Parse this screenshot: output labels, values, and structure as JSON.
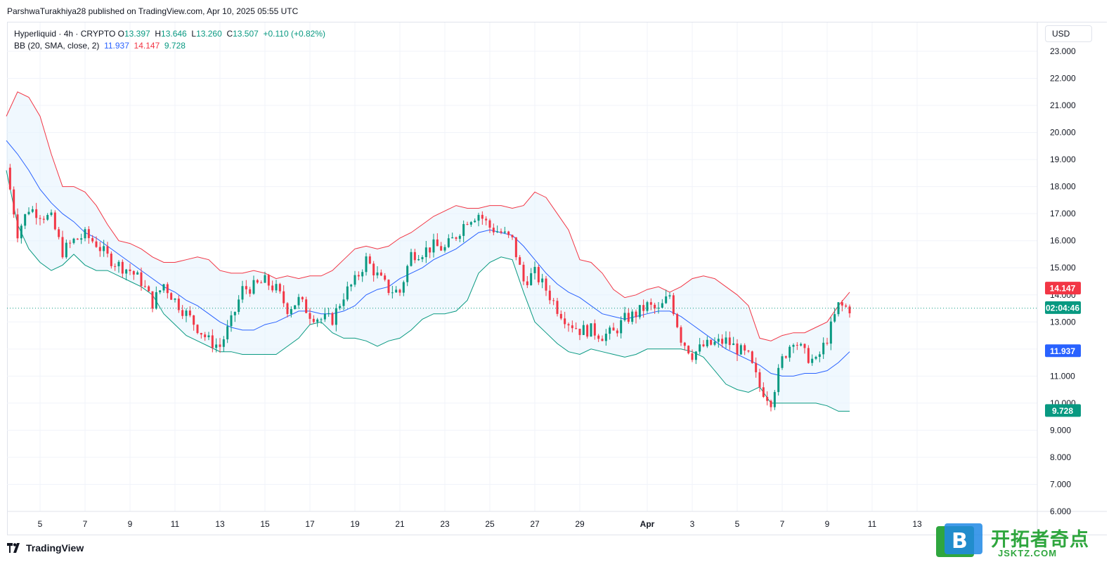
{
  "header": {
    "publisher_line": "ParshwaTurakhiya28 published on TradingView.com, Apr 10, 2025 05:55 UTC"
  },
  "legend": {
    "symbol": "Hyperliquid · 4h · CRYPTO",
    "o_label": "O",
    "o": "13.397",
    "h_label": "H",
    "h": "13.646",
    "l_label": "L",
    "l": "13.260",
    "c_label": "C",
    "c": "13.507",
    "change": "+0.110 (+0.82%)",
    "bb_label": "BB (20, SMA, close, 2)",
    "bb_basis": "11.937",
    "bb_upper": "14.147",
    "bb_lower": "9.728"
  },
  "currency_button": "USD",
  "price_badges": {
    "upper": "14.147",
    "countdown": "02:04:46",
    "basis": "11.937",
    "lower": "9.728"
  },
  "footer": {
    "brand": "TradingView"
  },
  "watermark": {
    "text": "开拓者奇点",
    "url": "JSKTZ.COM"
  },
  "colors": {
    "up": "#089981",
    "down": "#f23645",
    "basis": "#2962ff",
    "upper": "#f23645",
    "lower": "#089981",
    "fill": "#e3f2fd"
  },
  "chart_data": {
    "type": "line",
    "title": "Hyperliquid · 4h · CRYPTO",
    "y_ticks": [
      "23.000",
      "22.000",
      "21.000",
      "20.000",
      "19.000",
      "18.000",
      "17.000",
      "16.000",
      "15.000",
      "14.000",
      "13.000",
      "12.000",
      "11.000",
      "10.000",
      "9.000",
      "8.000",
      "7.000",
      "6.000"
    ],
    "ylim": [
      6.0,
      23.4
    ],
    "x_ticks": [
      "5",
      "7",
      "9",
      "11",
      "13",
      "15",
      "17",
      "19",
      "21",
      "23",
      "25",
      "27",
      "29",
      "Apr",
      "3",
      "5",
      "7",
      "9",
      "11",
      "13"
    ],
    "x_tick_days": [
      5,
      7,
      9,
      11,
      13,
      15,
      17,
      19,
      21,
      23,
      25,
      27,
      29,
      32,
      34,
      36,
      38,
      40,
      42,
      44
    ],
    "x_range_days": [
      3.5,
      47.8
    ],
    "last_price": 13.507,
    "series": [
      {
        "name": "Upper",
        "color": "#f23645",
        "x": [
          3.5,
          4.0,
          4.5,
          5.0,
          5.5,
          6.0,
          6.5,
          7.0,
          7.5,
          8.0,
          8.5,
          9.0,
          9.5,
          10.0,
          10.5,
          11.0,
          11.5,
          12.0,
          12.5,
          13.0,
          13.5,
          14.0,
          14.5,
          15.0,
          15.5,
          16.0,
          16.5,
          17.0,
          17.5,
          18.0,
          18.5,
          19.0,
          19.5,
          20.0,
          20.5,
          21.0,
          21.5,
          22.0,
          22.5,
          23.0,
          23.5,
          24.0,
          24.5,
          25.0,
          25.5,
          26.0,
          26.5,
          27.0,
          27.5,
          28.0,
          28.5,
          29.0,
          29.5,
          30.0,
          30.5,
          31.0,
          31.5,
          32.0,
          32.5,
          33.0,
          33.5,
          34.0,
          34.5,
          35.0,
          35.5,
          36.0,
          36.5,
          37.0,
          37.5,
          38.0,
          38.5,
          39.0,
          39.5,
          40.0,
          40.5,
          41.0
        ],
        "values": [
          20.6,
          21.5,
          21.3,
          20.6,
          19.2,
          18.0,
          18.0,
          17.8,
          17.3,
          16.6,
          16.0,
          15.9,
          15.7,
          15.4,
          15.2,
          15.2,
          15.3,
          15.4,
          15.3,
          14.9,
          14.8,
          14.8,
          14.9,
          14.8,
          14.6,
          14.7,
          14.6,
          14.7,
          14.7,
          14.9,
          15.3,
          15.7,
          15.8,
          15.7,
          15.8,
          16.1,
          16.3,
          16.6,
          16.9,
          17.1,
          17.3,
          17.2,
          17.2,
          17.3,
          17.3,
          17.2,
          17.3,
          17.8,
          17.6,
          17.0,
          16.4,
          15.3,
          15.2,
          14.8,
          14.2,
          13.9,
          14.0,
          14.2,
          14.3,
          14.1,
          14.3,
          14.6,
          14.7,
          14.6,
          14.3,
          14.0,
          13.6,
          12.4,
          12.3,
          12.5,
          12.6,
          12.6,
          12.8,
          13.0,
          13.6,
          14.1
        ]
      },
      {
        "name": "Basis",
        "color": "#2962ff",
        "x": [
          3.5,
          4.0,
          4.5,
          5.0,
          5.5,
          6.0,
          6.5,
          7.0,
          7.5,
          8.0,
          8.5,
          9.0,
          9.5,
          10.0,
          10.5,
          11.0,
          11.5,
          12.0,
          12.5,
          13.0,
          13.5,
          14.0,
          14.5,
          15.0,
          15.5,
          16.0,
          16.5,
          17.0,
          17.5,
          18.0,
          18.5,
          19.0,
          19.5,
          20.0,
          20.5,
          21.0,
          21.5,
          22.0,
          22.5,
          23.0,
          23.5,
          24.0,
          24.5,
          25.0,
          25.5,
          26.0,
          26.5,
          27.0,
          27.5,
          28.0,
          28.5,
          29.0,
          29.5,
          30.0,
          30.5,
          31.0,
          31.5,
          32.0,
          32.5,
          33.0,
          33.5,
          34.0,
          34.5,
          35.0,
          35.5,
          36.0,
          36.5,
          37.0,
          37.5,
          38.0,
          38.5,
          39.0,
          39.5,
          40.0,
          40.5,
          41.0
        ],
        "values": [
          19.7,
          19.2,
          18.6,
          17.9,
          17.4,
          17.0,
          16.7,
          16.3,
          16.1,
          15.8,
          15.5,
          15.2,
          14.9,
          14.6,
          14.3,
          14.1,
          13.8,
          13.6,
          13.3,
          13.0,
          12.8,
          12.7,
          12.7,
          12.9,
          13.0,
          13.2,
          13.4,
          13.4,
          13.3,
          13.3,
          13.4,
          13.6,
          14.0,
          14.2,
          14.3,
          14.6,
          14.8,
          15.0,
          15.3,
          15.5,
          15.7,
          16.0,
          16.3,
          16.4,
          16.3,
          16.2,
          15.8,
          15.3,
          14.8,
          14.4,
          14.1,
          13.9,
          13.6,
          13.3,
          13.2,
          13.1,
          13.2,
          13.3,
          13.4,
          13.4,
          13.2,
          12.9,
          12.6,
          12.3,
          12.0,
          11.8,
          11.6,
          11.4,
          11.1,
          11.0,
          11.0,
          11.1,
          11.1,
          11.2,
          11.5,
          11.9
        ]
      },
      {
        "name": "Lower",
        "color": "#089981",
        "x": [
          3.5,
          4.0,
          4.5,
          5.0,
          5.5,
          6.0,
          6.5,
          7.0,
          7.5,
          8.0,
          8.5,
          9.0,
          9.5,
          10.0,
          10.5,
          11.0,
          11.5,
          12.0,
          12.5,
          13.0,
          13.5,
          14.0,
          14.5,
          15.0,
          15.5,
          16.0,
          16.5,
          17.0,
          17.5,
          18.0,
          18.5,
          19.0,
          19.5,
          20.0,
          20.5,
          21.0,
          21.5,
          22.0,
          22.5,
          23.0,
          23.5,
          24.0,
          24.5,
          25.0,
          25.5,
          26.0,
          26.5,
          27.0,
          27.5,
          28.0,
          28.5,
          29.0,
          29.5,
          30.0,
          30.5,
          31.0,
          31.5,
          32.0,
          32.5,
          33.0,
          33.5,
          34.0,
          34.5,
          35.0,
          35.5,
          36.0,
          36.5,
          37.0,
          37.5,
          38.0,
          38.5,
          39.0,
          39.5,
          40.0,
          40.5,
          41.0
        ],
        "values": [
          18.6,
          16.6,
          15.7,
          15.2,
          14.9,
          15.1,
          15.5,
          15.1,
          14.9,
          14.9,
          14.7,
          14.5,
          14.3,
          14.0,
          13.3,
          12.9,
          12.5,
          12.3,
          12.1,
          11.9,
          11.9,
          11.8,
          11.8,
          11.8,
          11.8,
          12.1,
          12.4,
          12.9,
          13.0,
          12.6,
          12.4,
          12.4,
          12.3,
          12.1,
          12.3,
          12.4,
          12.7,
          13.1,
          13.3,
          13.3,
          13.4,
          13.8,
          14.8,
          15.2,
          15.4,
          15.3,
          14.1,
          13.0,
          12.6,
          12.2,
          11.9,
          11.8,
          12.0,
          11.9,
          11.8,
          11.7,
          11.8,
          12.0,
          12.0,
          12.0,
          12.0,
          11.9,
          11.7,
          11.2,
          10.7,
          10.5,
          10.4,
          10.6,
          10.0,
          10.0,
          10.0,
          10.0,
          10.0,
          9.9,
          9.7,
          9.7
        ]
      },
      {
        "name": "Close",
        "color": "#131722",
        "x": [
          3.5,
          4.0,
          4.5,
          5.0,
          5.5,
          6.0,
          6.5,
          7.0,
          7.5,
          8.0,
          8.5,
          9.0,
          9.5,
          10.0,
          10.5,
          11.0,
          11.5,
          12.0,
          12.5,
          13.0,
          13.5,
          14.0,
          14.5,
          15.0,
          15.5,
          16.0,
          16.5,
          17.0,
          17.5,
          18.0,
          18.5,
          19.0,
          19.5,
          20.0,
          20.5,
          21.0,
          21.5,
          22.0,
          22.5,
          23.0,
          23.5,
          24.0,
          24.5,
          25.0,
          25.5,
          26.0,
          26.5,
          27.0,
          27.5,
          28.0,
          28.5,
          29.0,
          29.5,
          30.0,
          30.5,
          31.0,
          31.5,
          32.0,
          32.5,
          33.0,
          33.5,
          34.0,
          34.5,
          35.0,
          35.5,
          36.0,
          36.5,
          37.0,
          37.5,
          38.0,
          38.5,
          39.0,
          39.5,
          40.0,
          40.5,
          41.0
        ],
        "values": [
          18.7,
          16.3,
          17.2,
          17.0,
          16.8,
          15.6,
          16.0,
          16.2,
          15.9,
          15.4,
          15.1,
          14.9,
          14.5,
          13.7,
          14.4,
          13.8,
          13.3,
          12.8,
          12.3,
          12.1,
          13.0,
          14.2,
          14.3,
          14.5,
          14.2,
          13.5,
          13.8,
          13.3,
          13.1,
          13.1,
          14.0,
          14.5,
          15.3,
          14.7,
          14.2,
          14.1,
          15.5,
          15.6,
          15.8,
          15.7,
          16.2,
          16.8,
          17.0,
          16.5,
          16.3,
          16.0,
          14.5,
          14.8,
          14.2,
          13.5,
          13.0,
          12.7,
          12.7,
          12.5,
          12.6,
          13.1,
          13.3,
          13.6,
          13.4,
          14.0,
          12.4,
          11.8,
          12.1,
          12.2,
          12.3,
          12.0,
          11.7,
          10.6,
          10.1,
          11.6,
          12.4,
          11.8,
          11.5,
          12.4,
          13.6,
          13.5
        ]
      }
    ]
  }
}
